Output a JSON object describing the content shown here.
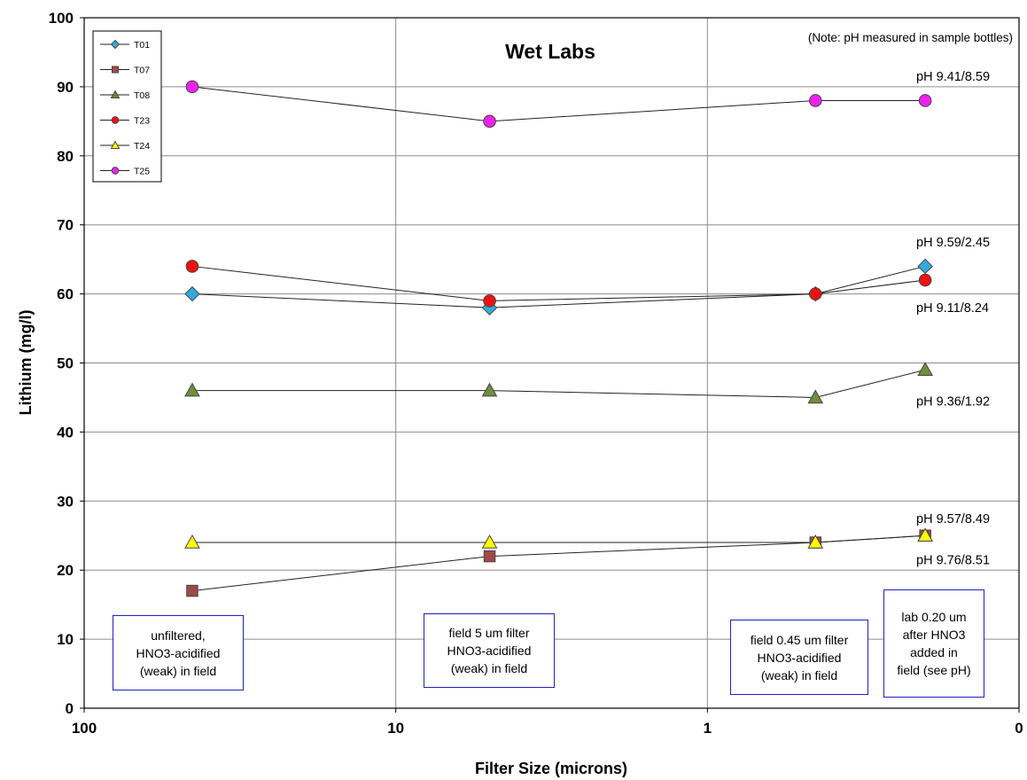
{
  "chart_data": {
    "type": "scatter",
    "title": "Wet Labs",
    "xlabel": "Filter Size (microns)",
    "ylabel": "Lithium (mg/l)",
    "x_scale": "log",
    "x_reversed": true,
    "xlim": [
      100,
      0.1
    ],
    "ylim": [
      0,
      100
    ],
    "x_tick_labels": [
      "100",
      "10",
      "1",
      "0"
    ],
    "y_tick_labels": [
      "0",
      "10",
      "20",
      "30",
      "40",
      "50",
      "60",
      "70",
      "80",
      "90",
      "100"
    ],
    "grid": "on",
    "legend_position": "top-left",
    "note": "(Note: pH measured in sample bottles)",
    "x": [
      45,
      5,
      0.45,
      0.2
    ],
    "series": [
      {
        "name": "T01",
        "marker": "diamond",
        "color": "#33aadd",
        "values": [
          60,
          58,
          60,
          64
        ]
      },
      {
        "name": "T07",
        "marker": "square",
        "color": "#a04a48",
        "values": [
          17,
          22,
          24,
          25
        ]
      },
      {
        "name": "T08",
        "marker": "triangle",
        "color": "#6f8e3c",
        "values": [
          46,
          46,
          45,
          49
        ]
      },
      {
        "name": "T23",
        "marker": "circle",
        "color": "#ee1111",
        "values": [
          64,
          59,
          60,
          62
        ]
      },
      {
        "name": "T24",
        "marker": "triangle",
        "color": "#ffff00",
        "values": [
          24,
          24,
          24,
          25
        ]
      },
      {
        "name": "T25",
        "marker": "circle",
        "color": "#ee22ee",
        "values": [
          90,
          85,
          88,
          88
        ]
      }
    ],
    "ph_labels": [
      {
        "text": "pH 9.41/8.59",
        "y": 91.5
      },
      {
        "text": "pH 9.59/2.45",
        "y": 67.5
      },
      {
        "text": "pH 9.11/8.24",
        "y": 58.0
      },
      {
        "text": "pH 9.36/1.92",
        "y": 44.5
      },
      {
        "text": "pH 9.57/8.49",
        "y": 27.5
      },
      {
        "text": "pH 9.76/8.51",
        "y": 21.5
      }
    ],
    "annotations": [
      {
        "text": "unfiltered,\nHNO3-acidified\n(weak) in field"
      },
      {
        "text": "field 5 um filter\nHNO3-acidified\n(weak) in field"
      },
      {
        "text": "field 0.45 um filter\nHNO3-acidified\n(weak) in field"
      },
      {
        "text": "lab 0.20 um\nafter HNO3\nadded in\nfield (see pH)"
      }
    ]
  }
}
